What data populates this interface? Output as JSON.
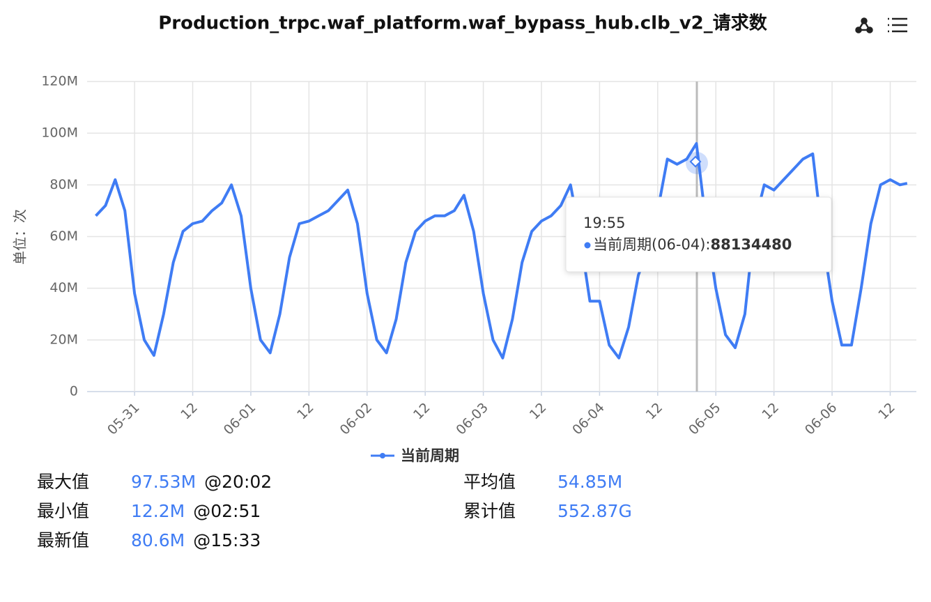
{
  "chart_data": {
    "type": "line",
    "title": "Production_trpc.waf_platform.waf_bypass_hub.clb_v2_请求数",
    "y_label": "单位：次",
    "x": [
      -8,
      -6,
      -4,
      -2,
      0,
      2,
      4,
      6,
      8,
      10,
      12,
      14,
      16,
      18,
      20,
      22,
      24,
      26,
      28,
      30,
      32,
      34,
      36,
      38,
      40,
      42,
      44,
      46,
      48,
      50,
      52,
      54,
      56,
      58,
      60,
      62,
      64,
      66,
      68,
      70,
      72,
      74,
      76,
      78,
      80,
      82,
      84,
      86,
      88,
      90,
      92,
      94,
      96,
      98,
      100,
      102,
      104,
      106,
      108,
      110,
      112,
      114,
      116,
      118,
      120,
      122,
      124,
      126,
      128,
      130,
      132,
      134,
      136,
      138,
      140,
      142,
      144,
      146,
      148,
      150,
      152,
      154,
      156,
      158,
      159.5
    ],
    "series": [
      {
        "name": "当前周期",
        "color": "#3f7cf4",
        "values": [
          68,
          72,
          82,
          70,
          38,
          20,
          14,
          30,
          50,
          62,
          65,
          66,
          70,
          73,
          80,
          68,
          40,
          20,
          15,
          30,
          52,
          65,
          66,
          68,
          70,
          74,
          78,
          65,
          38,
          20,
          15,
          28,
          50,
          62,
          66,
          68,
          68,
          70,
          76,
          62,
          38,
          20,
          13,
          28,
          50,
          62,
          66,
          68,
          72,
          80,
          60,
          35,
          35,
          18,
          13,
          25,
          45,
          55,
          70,
          90,
          88,
          90,
          96,
          65,
          40,
          22,
          17,
          30,
          65,
          80,
          78,
          82,
          86,
          90,
          92,
          60,
          35,
          18,
          18,
          40,
          65,
          80,
          82,
          80,
          80.6
        ]
      }
    ],
    "xlim": [
      -9.8,
      161.4
    ],
    "xticks": [
      {
        "value": 0,
        "label": "05-31"
      },
      {
        "value": 12,
        "label": "12"
      },
      {
        "value": 24,
        "label": "06-01"
      },
      {
        "value": 36,
        "label": "12"
      },
      {
        "value": 48,
        "label": "06-02"
      },
      {
        "value": 60,
        "label": "12"
      },
      {
        "value": 72,
        "label": "06-03"
      },
      {
        "value": 84,
        "label": "12"
      },
      {
        "value": 96,
        "label": "06-04"
      },
      {
        "value": 108,
        "label": "12"
      },
      {
        "value": 120,
        "label": "06-05"
      },
      {
        "value": 132,
        "label": "12"
      },
      {
        "value": 144,
        "label": "06-06"
      },
      {
        "value": 156,
        "label": "12"
      }
    ],
    "ylim": [
      0,
      120
    ],
    "yticks": [
      0,
      {
        "value": 20,
        "label": "20M"
      },
      {
        "value": 40,
        "label": "40M"
      },
      {
        "value": 60,
        "label": "60M"
      },
      {
        "value": 80,
        "label": "80M"
      },
      {
        "value": 100,
        "label": "100M"
      },
      {
        "value": 120,
        "label": "120M"
      }
    ],
    "grid": true,
    "tooltip": {
      "time": "19:55",
      "label": "当前周期(06-04):",
      "value": "88134480"
    }
  },
  "stats": [
    {
      "label": "最大值",
      "value": "97.53M",
      "time": "@20:02"
    },
    {
      "label": "最小值",
      "value": "12.2M",
      "time": "@02:51"
    },
    {
      "label": "最新值",
      "value": "80.6M",
      "time": "@15:33"
    },
    {
      "label": "平均值",
      "value": "54.85M"
    },
    {
      "label": "累计值",
      "value": "552.87G"
    }
  ]
}
